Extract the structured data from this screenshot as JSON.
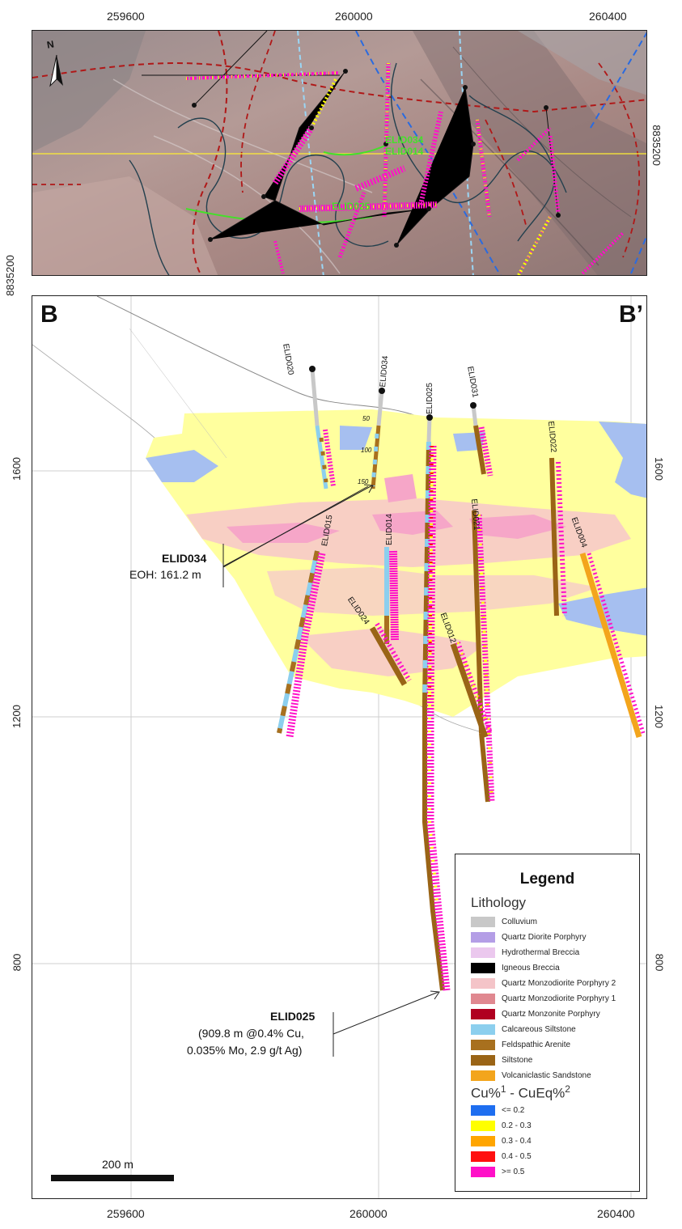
{
  "plan_axes": {
    "x_ticks": [
      "259600",
      "260000",
      "260400"
    ],
    "y_ticks_left": [
      "8835200"
    ],
    "y_ticks_right": [
      "8835200"
    ]
  },
  "plan_labels": {
    "north": "N",
    "holes": [
      "ELID034",
      "ELID014",
      "ELID025"
    ]
  },
  "section": {
    "start_label": "B",
    "end_label": "B’",
    "x_ticks": [
      "259600",
      "260000",
      "260400"
    ],
    "elev_ticks_left": [
      "1600",
      "1200",
      "800"
    ],
    "elev_ticks_right": [
      "1600",
      "1200",
      "800"
    ],
    "depth_marks": [
      "50",
      "100",
      "150"
    ],
    "holes": [
      "ELID020",
      "ELID034",
      "ELID025",
      "ELID031",
      "ELID022",
      "ELID021",
      "ELID015",
      "ELID014",
      "ELID004",
      "ELID024",
      "ELID012"
    ]
  },
  "callouts": {
    "elid034": {
      "title": "ELID034",
      "text": "EOH: 161.2 m"
    },
    "elid025": {
      "title": "ELID025",
      "line1": "(909.8 m @0.4% Cu,",
      "line2": "0.035% Mo, 2.9 g/t Ag)"
    }
  },
  "scale_bar": {
    "label": "200 m"
  },
  "legend": {
    "title": "Legend",
    "lithology_heading": "Lithology",
    "lithology": [
      {
        "label": "Colluvium",
        "color": "#c8c8c8"
      },
      {
        "label": "Quartz Diorite Porphyry",
        "color": "#b49ee6"
      },
      {
        "label": "Hydrothermal Breccia",
        "color": "#ebc8ee"
      },
      {
        "label": "Igneous Breccia",
        "color": "#000000"
      },
      {
        "label": "Quartz Monzodiorite Porphyry 2",
        "color": "#f4c4c8"
      },
      {
        "label": "Quartz Monzodiorite Porphyry 1",
        "color": "#e08890"
      },
      {
        "label": "Quartz Monzonite Porphyry",
        "color": "#b00020"
      },
      {
        "label": "Calcareous Siltstone",
        "color": "#8ccfee"
      },
      {
        "label": "Feldspathic Arenite",
        "color": "#a8701e"
      },
      {
        "label": "Siltstone",
        "color": "#9a6416"
      },
      {
        "label": "Volcaniclastic Sandstone",
        "color": "#f3a51c"
      }
    ],
    "grade_heading_a": "Cu%",
    "grade_sup_a": "1",
    "grade_heading_b": " - CuEq%",
    "grade_sup_b": "2",
    "grades": [
      {
        "label": "<= 0.2",
        "color": "#1e6ef0"
      },
      {
        "label": "0.2 - 0.3",
        "color": "#ffff00"
      },
      {
        "label": "0.3 - 0.4",
        "color": "#ffa500"
      },
      {
        "label": "0.4 - 0.5",
        "color": "#ff1010"
      },
      {
        "label": ">= 0.5",
        "color": "#ff10c8"
      }
    ]
  }
}
